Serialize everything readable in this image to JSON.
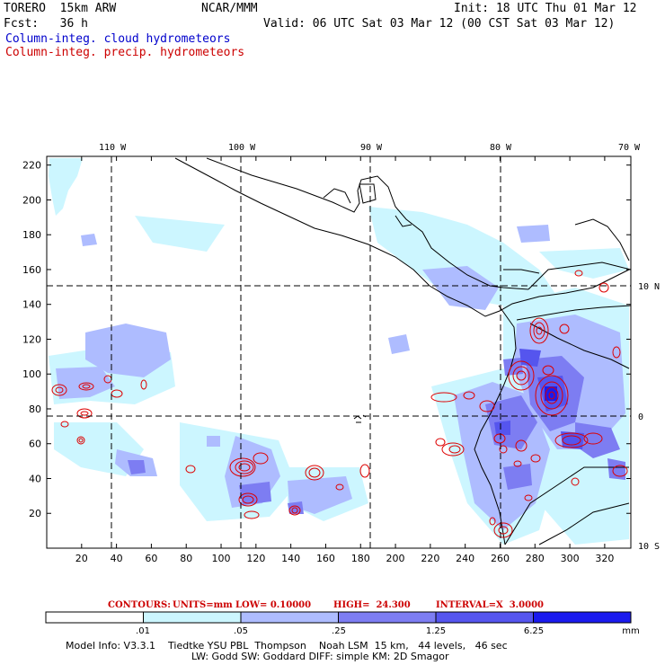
{
  "header": {
    "model_name": "TORERO  15km ARW",
    "center": "NCAR/MMM",
    "init": "Init: 18 UTC Thu 01 Mar 12",
    "fcst": "Fcst:   36 h",
    "valid": "Valid: 06 UTC Sat 03 Mar 12 (00 CST Sat 03 Mar 12)",
    "field1": "Column-integ. cloud hydrometeors",
    "field2": "Column-integ. precip. hydrometeors",
    "field1_color": "#0000cc",
    "field2_color": "#cc0000"
  },
  "map": {
    "lon_labels": [
      "110 W",
      "100 W",
      "90 W",
      "80 W",
      "70 W"
    ],
    "lat_labels": [
      "10 N",
      "0",
      "10 S"
    ],
    "y_ticks": [
      "220",
      "200",
      "180",
      "160",
      "140",
      "120",
      "100",
      "80",
      "60",
      "40",
      "20"
    ],
    "x_ticks": [
      "20",
      "40",
      "60",
      "80",
      "100",
      "120",
      "140",
      "160",
      "180",
      "200",
      "220",
      "240",
      "260",
      "280",
      "300",
      "320"
    ]
  },
  "contours": {
    "label": "CONTOURS:",
    "units": "UNITS=mm",
    "low": "LOW= 0.10000",
    "high": "HIGH=  24.300",
    "interval": "INTERVAL=X  3.0000"
  },
  "colorbar": {
    "ticks": [
      ".01",
      ".05",
      ".25",
      "1.25",
      "6.25"
    ],
    "unit": "mm",
    "colors": [
      "#ffffff",
      "#ccf6ff",
      "#aebcff",
      "#7d7df2",
      "#5555ee",
      "#1a1aee"
    ]
  },
  "footer": {
    "line1": "Model Info: V3.3.1    Tiedtke YSU PBL  Thompson    Noah LSM  15 km,   44 levels,   46 sec",
    "line2": "LW: Godd SW: Goddard DIFF: simple KM: 2D Smagor"
  }
}
